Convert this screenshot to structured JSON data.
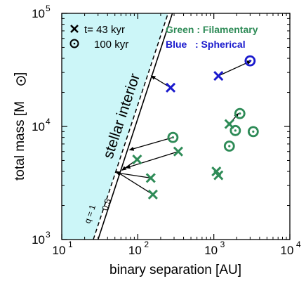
{
  "chart_data": {
    "type": "scatter",
    "xlabel": "binary separation [AU]",
    "ylabel_main": "total mass [M",
    "ylabel_close": "]",
    "x_scale": "log",
    "y_scale": "log",
    "xlim": [
      10,
      10000
    ],
    "ylim": [
      1000,
      100000
    ],
    "x_ticks": [
      {
        "value": 10,
        "base": "10",
        "exp": "1"
      },
      {
        "value": 100,
        "base": "10",
        "exp": "2"
      },
      {
        "value": 1000,
        "base": "10",
        "exp": "3"
      },
      {
        "value": 10000,
        "base": "10",
        "exp": "4"
      }
    ],
    "y_ticks": [
      {
        "value": 1000,
        "base": "10",
        "exp": "3"
      },
      {
        "value": 10000,
        "base": "10",
        "exp": "4"
      },
      {
        "value": 100000,
        "base": "10",
        "exp": "5"
      }
    ],
    "colors": {
      "green": "#2e8b57",
      "blue": "#1a1acd",
      "region_fill": "#ccf6f8"
    },
    "legend": {
      "marker_x_label": "t= 43 kyr",
      "marker_o_label": "100 kyr",
      "color_green_label": "Green : Filamentary",
      "color_blue_label": "Blue   : Spherical",
      "position": "top"
    },
    "region_label": "stellar interior",
    "lines": [
      {
        "label": "q = 1",
        "style": "dashed",
        "points": [
          [
            26,
            1000
          ],
          [
            250,
            100000
          ]
        ]
      },
      {
        "label": "0.5",
        "style": "solid",
        "points": [
          [
            30,
            1000
          ],
          [
            285,
            100000
          ]
        ]
      }
    ],
    "markers_x_green": [
      [
        98,
        5100
      ],
      [
        148,
        3500
      ],
      [
        158,
        2500
      ],
      [
        340,
        6000
      ],
      [
        1080,
        4000
      ],
      [
        1150,
        3700
      ],
      [
        1600,
        10500
      ]
    ],
    "markers_x_blue": [
      [
        270,
        22000
      ],
      [
        1150,
        28000
      ]
    ],
    "markers_o_green": [
      [
        290,
        8000
      ],
      [
        1600,
        6700
      ],
      [
        1920,
        9200
      ],
      [
        2200,
        13000
      ],
      [
        3300,
        9000
      ]
    ],
    "markers_o_blue": [
      [
        3000,
        38000
      ]
    ],
    "arrows": [
      {
        "from": [
          98,
          5100
        ],
        "to": [
          62,
          4100
        ]
      },
      {
        "from": [
          148,
          3500
        ],
        "to": [
          52,
          3900
        ]
      },
      {
        "from": [
          158,
          2500
        ],
        "to": [
          52,
          4000
        ]
      },
      {
        "from": [
          340,
          6000
        ],
        "to": [
          70,
          4300
        ]
      },
      {
        "from": [
          290,
          8000
        ],
        "to": [
          78,
          6200
        ]
      },
      {
        "from": [
          270,
          22000
        ],
        "to": [
          150,
          28000
        ]
      },
      {
        "from": [
          1150,
          28000
        ],
        "to": [
          3100,
          38000
        ]
      },
      {
        "from": [
          1600,
          10500
        ],
        "to": [
          2100,
          13000
        ]
      }
    ]
  }
}
